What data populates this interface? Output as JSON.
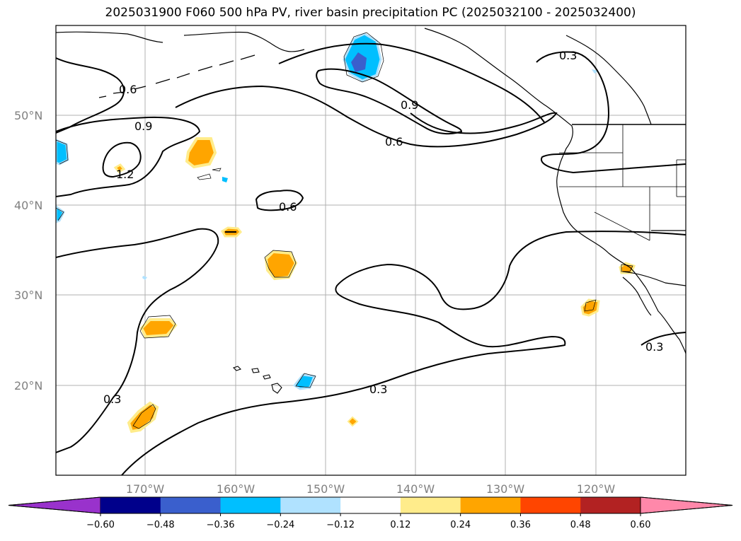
{
  "title": "2025031900 F060 500 hPa PV, river basin precipitation PC (2025032100 - 2025032400)",
  "lat_labels": [
    "50°N",
    "40°N",
    "30°N",
    "20°N"
  ],
  "lon_labels": [
    "170°W",
    "160°W",
    "150°W",
    "140°W",
    "130°W",
    "120°W"
  ],
  "contour_labels": [
    "0.6",
    "0.9",
    "1.2",
    "0.9",
    "0.6",
    "0.6",
    "0.3",
    "0.3",
    "0.3",
    "0.3"
  ],
  "colorbar": {
    "ticks": [
      "−0.60",
      "−0.48",
      "−0.36",
      "−0.24",
      "−0.12",
      "0.12",
      "0.24",
      "0.36",
      "0.48",
      "0.60"
    ],
    "colors": [
      "#9932cc",
      "#00008b",
      "#3a5fcd",
      "#00bfff",
      "#b0e2ff",
      "#ffffff",
      "#ffec8b",
      "#ffa500",
      "#ff4500",
      "#b22222",
      "#ff88aa"
    ]
  },
  "colors": {
    "grid": "#b0b0b0",
    "contour": "#000000"
  }
}
